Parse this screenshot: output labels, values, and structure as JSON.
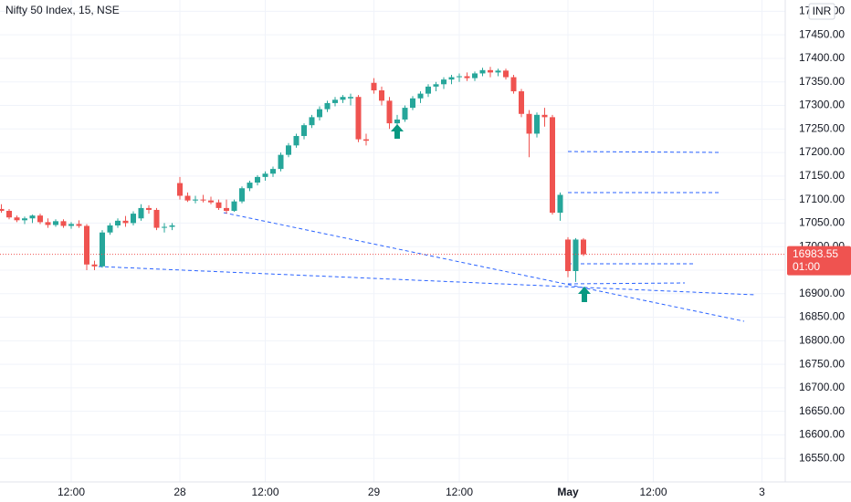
{
  "chart_data": {
    "type": "candlestick",
    "title": "Nifty 50 Index, 15, NSE",
    "currency": "INR",
    "last_price": 16983.55,
    "countdown": "01:00",
    "up_color": "#26a69a",
    "down_color": "#ef5350",
    "grid": true,
    "ylim": [
      16500,
      17524
    ],
    "yticks": [
      {
        "value": 16550,
        "label": "16550.00"
      },
      {
        "value": 16600,
        "label": "16600.00"
      },
      {
        "value": 16650,
        "label": "16650.00"
      },
      {
        "value": 16700,
        "label": "16700.00"
      },
      {
        "value": 16750,
        "label": "16750.00"
      },
      {
        "value": 16800,
        "label": "16800.00"
      },
      {
        "value": 16850,
        "label": "16850.00"
      },
      {
        "value": 16900,
        "label": "16900.00"
      },
      {
        "value": 16950,
        "label": "16950.00"
      },
      {
        "value": 17000,
        "label": "17000.00"
      },
      {
        "value": 17050,
        "label": "17050.00"
      },
      {
        "value": 17100,
        "label": "17100.00"
      },
      {
        "value": 17150,
        "label": "17150.00"
      },
      {
        "value": 17200,
        "label": "17200.00"
      },
      {
        "value": 17250,
        "label": "17250.00"
      },
      {
        "value": 17300,
        "label": "17300.00"
      },
      {
        "value": 17350,
        "label": "17350.00"
      },
      {
        "value": 17400,
        "label": "17400.00"
      },
      {
        "value": 17450,
        "label": "17450.00"
      },
      {
        "value": 17500,
        "label": "17500.00"
      }
    ],
    "categories": [
      null,
      null,
      null,
      null,
      null,
      null,
      null,
      null,
      null,
      "12:00",
      null,
      null,
      null,
      null,
      null,
      null,
      null,
      null,
      null,
      null,
      null,
      null,
      null,
      "28",
      null,
      null,
      null,
      null,
      null,
      null,
      null,
      null,
      null,
      null,
      "12:00",
      null,
      null,
      null,
      null,
      null,
      null,
      null,
      null,
      null,
      null,
      null,
      null,
      null,
      "29",
      null,
      null,
      null,
      null,
      null,
      null,
      null,
      null,
      null,
      null,
      "12:00",
      null,
      null,
      null,
      null,
      null,
      null,
      null,
      null,
      null,
      null,
      null,
      null,
      null,
      "May",
      null,
      null,
      null,
      null,
      null,
      null,
      null,
      null,
      null,
      null,
      "12:00",
      null,
      null,
      null,
      null,
      null,
      null,
      null,
      null,
      null,
      null,
      null,
      null,
      null,
      "3",
      null,
      null
    ],
    "open": [
      17080,
      17076,
      17062,
      17056,
      17060,
      17066,
      17052,
      17046,
      17054,
      17044,
      17048,
      17044,
      16962,
      16958,
      17030,
      17045,
      17055,
      17050,
      17060,
      17082,
      17078,
      17040,
      17042,
      17135,
      17108,
      17098,
      17100,
      17098,
      17094,
      17082,
      17076,
      17096,
      17124,
      17136,
      17148,
      17155,
      17165,
      17195,
      17215,
      17235,
      17258,
      17275,
      17292,
      17305,
      17312,
      17315,
      17318,
      17228,
      17348,
      17332,
      17310,
      17262,
      17270,
      17295,
      17315,
      17325,
      17340,
      17345,
      17355,
      17360,
      17362,
      17358,
      17368,
      17375,
      17370,
      17374,
      17360,
      17330,
      17282,
      17240,
      17280,
      17275,
      17072,
      17015,
      16948,
      17015,
      null,
      null,
      null,
      null,
      null,
      null,
      null,
      null,
      null,
      null,
      null,
      null,
      null,
      null,
      null,
      null,
      null,
      null,
      null,
      null,
      null,
      null,
      null,
      null,
      null
    ],
    "high": [
      17090,
      17080,
      17066,
      17064,
      17068,
      17070,
      17060,
      17058,
      17058,
      17052,
      17056,
      17048,
      16970,
      17035,
      17050,
      17060,
      17065,
      17075,
      17090,
      17088,
      17082,
      17050,
      17050,
      17148,
      17115,
      17108,
      17110,
      17106,
      17100,
      17100,
      17100,
      17128,
      17140,
      17152,
      17160,
      17170,
      17200,
      17220,
      17240,
      17262,
      17280,
      17298,
      17310,
      17318,
      17322,
      17325,
      17322,
      17240,
      17358,
      17340,
      17318,
      17280,
      17300,
      17320,
      17330,
      17345,
      17350,
      17360,
      17365,
      17368,
      17370,
      17372,
      17380,
      17382,
      17378,
      17378,
      17365,
      17335,
      17290,
      17285,
      17295,
      17280,
      17115,
      17020,
      17018,
      17018,
      null,
      null,
      null,
      null,
      null,
      null,
      null,
      null,
      null,
      null,
      null,
      null,
      null,
      null,
      null,
      null,
      null,
      null,
      null,
      null,
      null,
      null,
      null,
      null,
      null
    ],
    "low": [
      17072,
      17058,
      17052,
      17048,
      17050,
      17048,
      17040,
      17042,
      17040,
      17038,
      17040,
      16950,
      16950,
      16955,
      17025,
      17040,
      17042,
      17045,
      17055,
      17070,
      17035,
      17030,
      17035,
      17100,
      17095,
      17092,
      17094,
      17090,
      17078,
      17070,
      17074,
      17092,
      17118,
      17130,
      17140,
      17148,
      17160,
      17190,
      17210,
      17228,
      17252,
      17268,
      17286,
      17298,
      17305,
      17300,
      17222,
      17215,
      17325,
      17300,
      17250,
      17255,
      17265,
      17290,
      17305,
      17318,
      17330,
      17335,
      17345,
      17350,
      17352,
      17352,
      17362,
      17360,
      17362,
      17355,
      17325,
      17275,
      17190,
      17232,
      17255,
      17068,
      17055,
      16935,
      16925,
      16980,
      null,
      null,
      null,
      null,
      null,
      null,
      null,
      null,
      null,
      null,
      null,
      null,
      null,
      null,
      null,
      null,
      null,
      null,
      null,
      null,
      null,
      null,
      null,
      null,
      null
    ],
    "close": [
      17076,
      17062,
      17056,
      17060,
      17066,
      17052,
      17046,
      17054,
      17044,
      17048,
      17044,
      16962,
      16958,
      17030,
      17045,
      17055,
      17050,
      17070,
      17082,
      17078,
      17040,
      17042,
      17045,
      17108,
      17098,
      17100,
      17098,
      17094,
      17082,
      17076,
      17096,
      17124,
      17136,
      17148,
      17155,
      17165,
      17195,
      17215,
      17235,
      17258,
      17275,
      17292,
      17305,
      17312,
      17318,
      17318,
      17228,
      17225,
      17332,
      17310,
      17262,
      17270,
      17295,
      17315,
      17325,
      17340,
      17345,
      17355,
      17360,
      17362,
      17358,
      17368,
      17375,
      17370,
      17374,
      17360,
      17330,
      17282,
      17240,
      17280,
      17275,
      17072,
      17110,
      16948,
      17015,
      16983.55,
      null,
      null,
      null,
      null,
      null,
      null,
      null,
      null,
      null,
      null,
      null,
      null,
      null,
      null,
      null,
      null,
      null,
      null,
      null,
      null,
      null,
      null,
      null,
      null,
      null
    ]
  }
}
